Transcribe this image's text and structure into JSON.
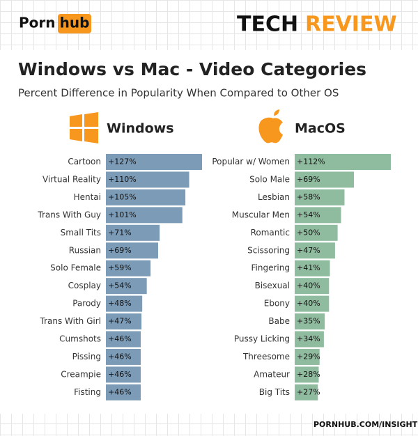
{
  "header": {
    "logo_left": "Porn",
    "logo_right": "hub",
    "brand_left": "TECH",
    "brand_right": "REVIEW"
  },
  "title": "Windows vs Mac - Video Categories",
  "subtitle": "Percent Difference in Popularity When Compared to Other OS",
  "footer": "PORNHUB.COM/INSIGHTS",
  "chart_data": [
    {
      "type": "bar",
      "orientation": "horizontal",
      "title": "Windows",
      "color": "#7c9bb6",
      "categories": [
        "Cartoon",
        "Virtual Reality",
        "Hentai",
        "Trans With Guy",
        "Small Tits",
        "Russian",
        "Solo Female",
        "Cosplay",
        "Parody",
        "Trans With Girl",
        "Cumshots",
        "Pissing",
        "Creampie",
        "Fisting"
      ],
      "values": [
        127,
        110,
        105,
        101,
        71,
        69,
        59,
        54,
        48,
        47,
        46,
        46,
        46,
        46
      ],
      "value_labels": [
        "+127%",
        "+110%",
        "+105%",
        "+101%",
        "+71%",
        "+69%",
        "+59%",
        "+54%",
        "+48%",
        "+47%",
        "+46%",
        "+46%",
        "+46%",
        "+46%"
      ]
    },
    {
      "type": "bar",
      "orientation": "horizontal",
      "title": "MacOS",
      "color": "#8fbb9e",
      "categories": [
        "Popular w/ Women",
        "Solo Male",
        "Lesbian",
        "Muscular Men",
        "Romantic",
        "Scissoring",
        "Fingering",
        "Bisexual",
        "Ebony",
        "Babe",
        "Pussy Licking",
        "Threesome",
        "Amateur",
        "Big Tits"
      ],
      "values": [
        112,
        69,
        58,
        54,
        50,
        47,
        41,
        40,
        40,
        35,
        34,
        29,
        28,
        27
      ],
      "value_labels": [
        "+112%",
        "+69%",
        "+58%",
        "+54%",
        "+50%",
        "+47%",
        "+41%",
        "+40%",
        "+40%",
        "+35%",
        "+34%",
        "+29%",
        "+28%",
        "+27%"
      ]
    }
  ]
}
